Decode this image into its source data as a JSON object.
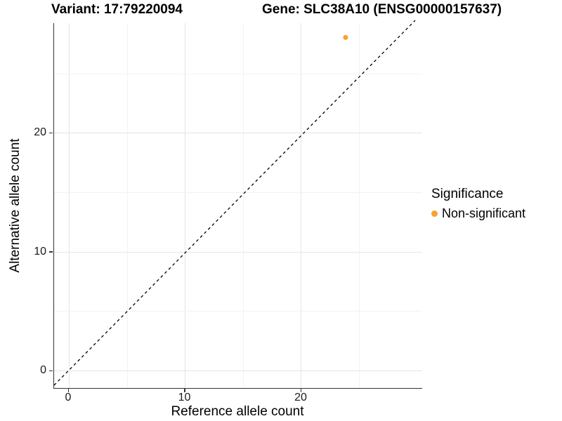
{
  "header": {
    "variant_title": "Variant: 17:79220094",
    "gene_title": "Gene: SLC38A10 (ENSG00000157637)"
  },
  "axes": {
    "x": {
      "label": "Reference allele count",
      "ticks": [
        "0",
        "10",
        "20"
      ]
    },
    "y": {
      "label": "Alternative allele count",
      "ticks": [
        "0",
        "10",
        "20"
      ]
    }
  },
  "legend": {
    "title": "Significance",
    "items": [
      {
        "label": "Non-significant",
        "color": "#F9A12B"
      }
    ]
  },
  "colors": {
    "point": "#F9A12B",
    "grid_major": "#e4e4e4",
    "grid_minor": "#f2f2f2",
    "axis_line": "#333333",
    "identity_line": "#000000"
  },
  "chart_data": {
    "type": "scatter",
    "title": "Variant: 17:79220094 | Gene: SLC38A10 (ENSG00000157637)",
    "xlabel": "Reference allele count",
    "ylabel": "Alternative allele count",
    "xlim": [
      -1.3,
      30.4
    ],
    "ylim": [
      -1.5,
      29.2
    ],
    "x_ticks": [
      0,
      10,
      20
    ],
    "y_ticks": [
      0,
      10,
      20
    ],
    "grid": "on",
    "legend_position": "right",
    "series": [
      {
        "name": "Non-significant",
        "color": "#F9A12B",
        "points": [
          {
            "x": 23.8,
            "y": 28
          }
        ]
      }
    ],
    "reference_line": {
      "type": "identity y=x",
      "style": "dashed",
      "color": "#000000"
    }
  }
}
